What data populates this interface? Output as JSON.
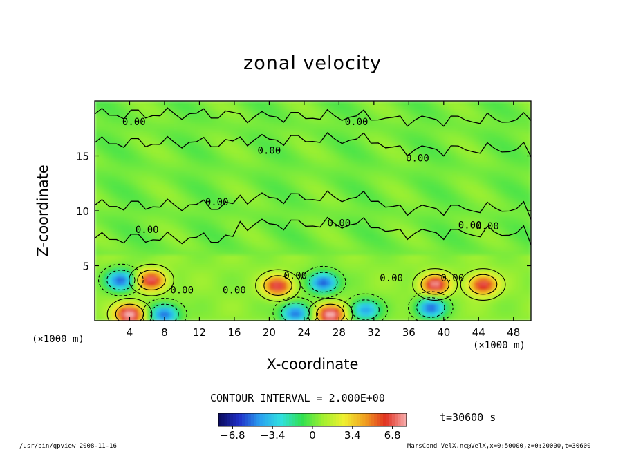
{
  "chart_data": {
    "type": "heatmap",
    "title": "zonal velocity",
    "xlabel": "X-coordinate",
    "ylabel": "Z-coordinate",
    "x_unit": "(×1000 m)",
    "xlim": [
      0,
      50
    ],
    "ylim": [
      0,
      20
    ],
    "x_ticks": [
      4,
      8,
      12,
      16,
      20,
      24,
      28,
      32,
      36,
      40,
      44,
      48
    ],
    "y_ticks": [
      5,
      10,
      15
    ],
    "contour_interval": "CONTOUR INTERVAL = 2.000E+00",
    "contour_labels": [
      "0.00",
      "0.00",
      "0.00",
      "0.00",
      "0.00",
      "0.00",
      "0.00",
      "0.00",
      "0.00",
      "0.00",
      "0.00",
      "0.00",
      "0.00",
      "0.00"
    ],
    "time": "t=30600 s",
    "colorbar": {
      "range": [
        -8,
        8
      ],
      "tick_values": [
        -6.8,
        -3.4,
        0,
        3.4,
        6.8
      ],
      "tick_labels": [
        "−6.8",
        "−3.4",
        "0",
        "3.4",
        "6.8"
      ],
      "colors": [
        "#0a0a5a",
        "#2030c8",
        "#2aa0f0",
        "#30e0e0",
        "#30e050",
        "#a0f030",
        "#f0f030",
        "#f0a020",
        "#e03020",
        "#f8b0b0"
      ]
    },
    "features": [
      {
        "x": 3.0,
        "z": 3.7,
        "value": -6.0
      },
      {
        "x": 6.5,
        "z": 3.7,
        "value": 6.5
      },
      {
        "x": 21.0,
        "z": 3.2,
        "value": 6.5
      },
      {
        "x": 26.2,
        "z": 3.5,
        "value": -6.5
      },
      {
        "x": 39.0,
        "z": 3.3,
        "value": 7.0
      },
      {
        "x": 44.5,
        "z": 3.3,
        "value": 6.5
      },
      {
        "x": 38.5,
        "z": 1.2,
        "value": -6.0
      },
      {
        "x": 4.0,
        "z": 0.6,
        "value": 8.0
      },
      {
        "x": 27.0,
        "z": 0.6,
        "value": 8.0
      },
      {
        "x": 8.0,
        "z": 0.6,
        "value": -6.0
      },
      {
        "x": 23.0,
        "z": 0.7,
        "value": -6.0
      },
      {
        "x": 31.0,
        "z": 1.0,
        "value": -5.0
      }
    ]
  },
  "footer": {
    "left": "/usr/bin/gpview  2008-11-16",
    "right": "MarsCond_VelX.nc@VelX,x=0:50000,z=0:20000,t=30600"
  }
}
